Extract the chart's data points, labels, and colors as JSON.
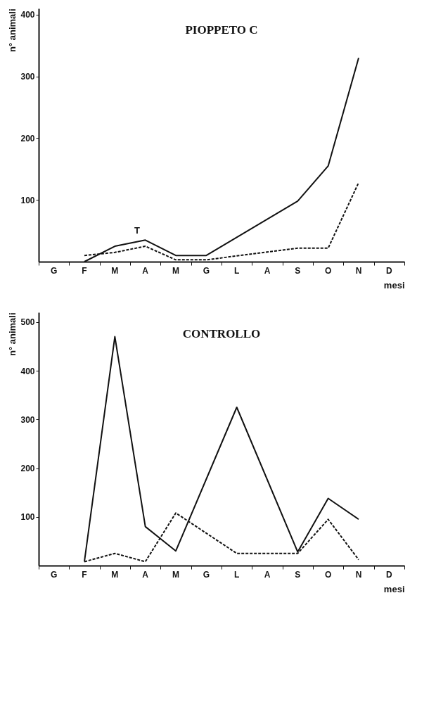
{
  "chart_data": [
    {
      "type": "line",
      "title": "PIOPPETO C",
      "xlabel": "mesi",
      "ylabel": "n° animali",
      "categories": [
        "G",
        "F",
        "M",
        "A",
        "M",
        "G",
        "L",
        "A",
        "S",
        "O",
        "N",
        "D"
      ],
      "series": [
        {
          "color": "#111111",
          "line_style": "solid",
          "values": [
            null,
            0,
            25,
            35,
            10,
            10,
            null,
            null,
            98,
            155,
            330,
            null
          ]
        },
        {
          "color": "#111111",
          "line_style": "dashed",
          "values": [
            null,
            10,
            15,
            25,
            3,
            3,
            null,
            null,
            22,
            22,
            128,
            null
          ]
        }
      ],
      "ylim": [
        0,
        410
      ],
      "yticks": [
        100,
        200,
        300,
        400
      ],
      "grid": false,
      "annotations": [
        "T"
      ]
    },
    {
      "type": "line",
      "title": "CONTROLLO",
      "xlabel": "mesi",
      "ylabel": "n° animali",
      "categories": [
        "G",
        "F",
        "M",
        "A",
        "M",
        "G",
        "L",
        "A",
        "S",
        "O",
        "N",
        "D"
      ],
      "series": [
        {
          "color": "#111111",
          "line_style": "solid",
          "values": [
            null,
            8,
            470,
            80,
            30,
            null,
            325,
            null,
            28,
            138,
            95,
            null
          ]
        },
        {
          "color": "#111111",
          "line_style": "dashed",
          "values": [
            null,
            8,
            25,
            8,
            108,
            null,
            25,
            null,
            25,
            95,
            12,
            null
          ]
        }
      ],
      "ylim": [
        0,
        520
      ],
      "yticks": [
        100,
        200,
        300,
        400,
        500
      ],
      "grid": false
    }
  ]
}
